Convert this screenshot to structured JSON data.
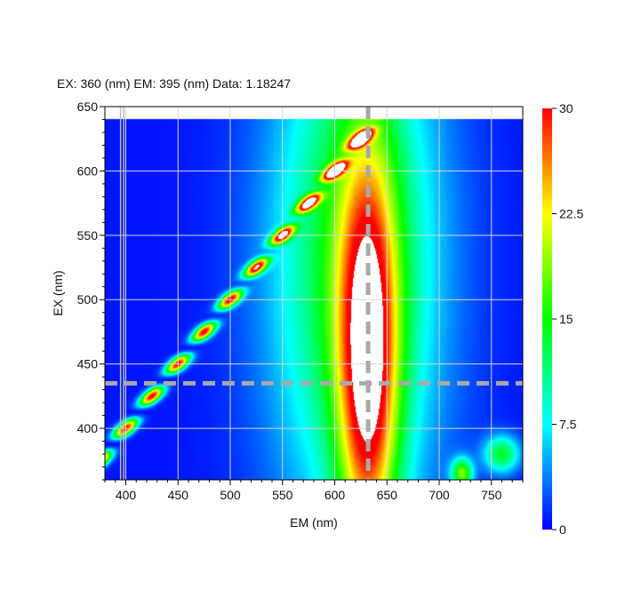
{
  "readout": {
    "text": "EX: 360 (nm) EM: 395 (nm) Data: 1.18247"
  },
  "chart_data": {
    "type": "heatmap",
    "title": "",
    "xlabel": "EM (nm)",
    "ylabel": "EX (nm)",
    "xlim": [
      380,
      780
    ],
    "ylim": [
      360,
      650
    ],
    "x_ticks": [
      400,
      450,
      500,
      550,
      600,
      650,
      700,
      750
    ],
    "y_ticks": [
      400,
      450,
      500,
      550,
      600,
      650
    ],
    "grid": true,
    "colorbar": {
      "min": 0,
      "max": 30,
      "ticks": [
        0,
        7.5,
        15,
        22.5,
        30
      ],
      "tick_labels": [
        "0",
        "7.5",
        "15",
        "22.5",
        "30"
      ],
      "colors": [
        "#0000ff",
        "#00ffff",
        "#00ff00",
        "#ffff00",
        "#ff0000"
      ]
    },
    "data_extent_ex_max": 640,
    "peaks": [
      {
        "em": 632,
        "ex": 450,
        "value": 26,
        "em_width": 20,
        "ex_width": 110
      },
      {
        "em": 620,
        "ex": 530,
        "value": 15,
        "em_width": 55,
        "ex_width": 150
      },
      {
        "em": 722,
        "ex": 365,
        "value": 17,
        "em_width": 7,
        "ex_width": 8
      },
      {
        "em": 760,
        "ex": 380,
        "value": 13,
        "em_width": 12,
        "ex_width": 10
      }
    ],
    "scatter_band": {
      "em_minus_ex": 0,
      "value": 30,
      "width": 6
    },
    "crosshair": {
      "em": 632,
      "ex": 435,
      "color": "#a9a9a9"
    },
    "cursor_lines": {
      "em": [
        395,
        398
      ]
    }
  }
}
